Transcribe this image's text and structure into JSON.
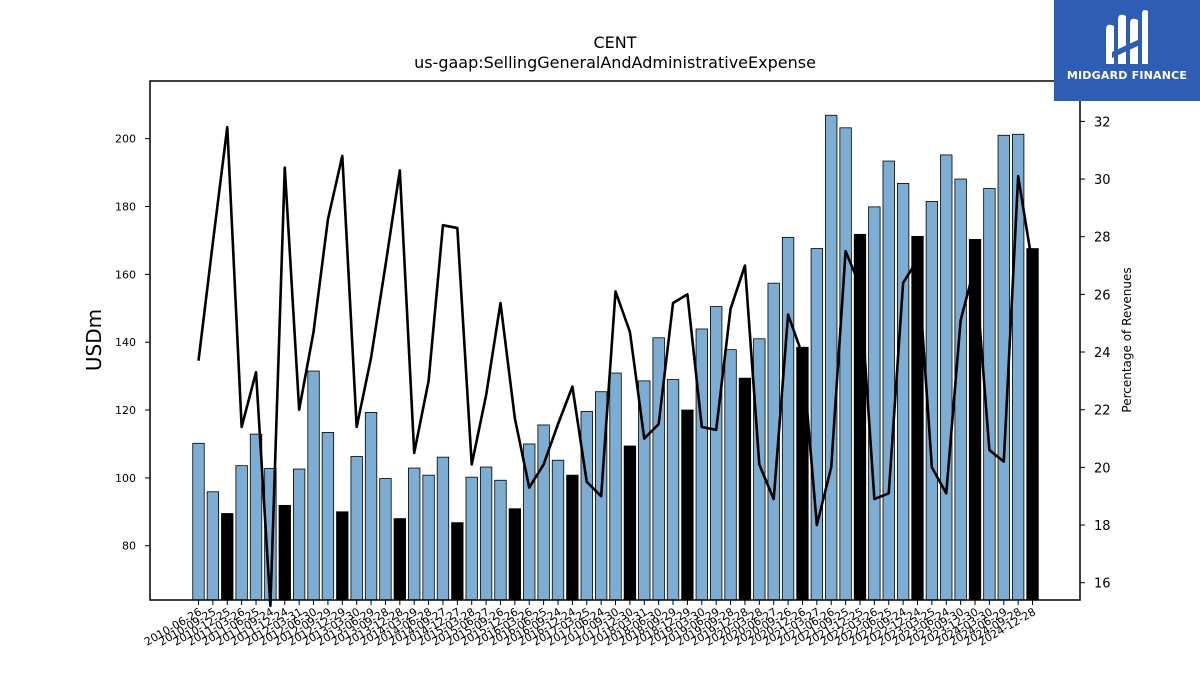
{
  "chart_data": {
    "type": "bar",
    "title": "CENT",
    "subtitle": "us-gaap:SellingGeneralAndAdministrativeExpense",
    "ylabel": "USDm",
    "y2label": "Percentage of Revenues",
    "ylim": [
      64,
      217
    ],
    "y2lim": [
      15.4,
      33.4
    ],
    "yticks": [
      80,
      100,
      120,
      140,
      160,
      180,
      200
    ],
    "y2ticks": [
      16,
      18,
      20,
      22,
      24,
      26,
      28,
      30,
      32
    ],
    "bar_colors": {
      "quarter": "#7eadd3",
      "annual": "#000000"
    },
    "line_color": "#000000",
    "series": [
      {
        "name": "",
        "kind": "bar",
        "categories": [
          "2010-06-26",
          "2010-09-25",
          "2010-12-25",
          "2011-03-26",
          "2011-06-25",
          "2011-09-24",
          "2011-12-24",
          "2012-03-31",
          "2012-06-30",
          "2012-09-29",
          "2012-12-29",
          "2013-03-30",
          "2013-06-29",
          "2013-09-28",
          "2013-12-28",
          "2014-03-29",
          "2014-06-28",
          "2014-09-27",
          "2014-12-27",
          "2015-03-28",
          "2015-06-27",
          "2015-09-26",
          "2015-12-26",
          "2016-03-26",
          "2016-06-25",
          "2016-09-24",
          "2016-12-24",
          "2017-03-25",
          "2017-06-24",
          "2017-09-30",
          "2017-12-30",
          "2018-03-31",
          "2018-06-30",
          "2018-09-29",
          "2018-12-29",
          "2019-03-30",
          "2019-06-29",
          "2019-09-28",
          "2019-12-28",
          "2020-03-28",
          "2020-06-27",
          "2020-09-26",
          "2020-12-26",
          "2021-03-27",
          "2021-06-26",
          "2021-09-25",
          "2021-12-25",
          "2022-03-26",
          "2022-06-25",
          "2022-09-24",
          "2022-12-24",
          "2023-03-25",
          "2023-06-24",
          "2023-09-30",
          "2023-12-30",
          "2024-03-30",
          "2024-06-29",
          "2024-09-28",
          "2024-12-28"
        ],
        "values": [
          110.2,
          95.9,
          89.5,
          103.6,
          112.9,
          102.8,
          91.9,
          102.6,
          131.5,
          113.4,
          90.0,
          106.3,
          119.3,
          99.8,
          88.0,
          102.9,
          100.8,
          106.1,
          86.8,
          100.2,
          103.2,
          99.3,
          90.9,
          110.0,
          115.6,
          105.2,
          100.8,
          119.6,
          125.4,
          130.9,
          109.4,
          128.6,
          141.3,
          129.0,
          120.0,
          143.9,
          150.5,
          137.8,
          129.4,
          141.0,
          157.4,
          170.9,
          138.5,
          167.6,
          206.9,
          203.2,
          171.8,
          179.9,
          193.4,
          186.8,
          171.2,
          181.5,
          195.2,
          188.1,
          170.3,
          185.3,
          201.0,
          201.3,
          167.6
        ],
        "is_annual": [
          false,
          false,
          true,
          false,
          false,
          false,
          true,
          false,
          false,
          false,
          true,
          false,
          false,
          false,
          true,
          false,
          false,
          false,
          true,
          false,
          false,
          false,
          true,
          false,
          false,
          false,
          true,
          false,
          false,
          false,
          true,
          false,
          false,
          false,
          true,
          false,
          false,
          false,
          true,
          false,
          false,
          false,
          true,
          false,
          false,
          false,
          true,
          false,
          false,
          false,
          true,
          false,
          false,
          false,
          true,
          false,
          false,
          false,
          true
        ]
      },
      {
        "name": "",
        "kind": "line",
        "axis": "right",
        "values": [
          23.7,
          27.8,
          31.8,
          21.4,
          23.3,
          15.2,
          30.4,
          22.0,
          24.7,
          28.6,
          30.8,
          21.4,
          23.8,
          27.0,
          30.3,
          20.5,
          23.0,
          28.4,
          28.3,
          20.1,
          22.5,
          25.7,
          21.7,
          19.3,
          20.1,
          21.5,
          22.8,
          19.5,
          19.0,
          26.1,
          24.7,
          21.0,
          21.5,
          25.7,
          26.0,
          21.4,
          21.3,
          25.5,
          27.0,
          20.1,
          18.9,
          25.3,
          23.9,
          18.0,
          20.0,
          27.5,
          26.3,
          18.9,
          19.1,
          26.4,
          27.2,
          20.0,
          19.1,
          25.1,
          27.0,
          20.6,
          20.2,
          30.1,
          27.0
        ]
      }
    ],
    "xtick_labels": [
      "2010-06-26",
      "2010-09-25",
      "2010-12-25",
      "2011-03-26",
      "2011-06-25",
      "2011-09-24",
      "2011-12-24",
      "2012-03-31",
      "2012-06-30",
      "2012-09-29",
      "2012-12-29",
      "2013-03-30",
      "2013-06-29",
      "2013-09-28",
      "2013-12-28",
      "2014-03-29",
      "2014-06-28",
      "2014-09-27",
      "2014-12-27",
      "2015-03-28",
      "2015-06-27",
      "2015-09-26",
      "2015-12-26",
      "2016-03-26",
      "2016-06-25",
      "2016-09-24",
      "2016-12-24",
      "2017-03-25",
      "2017-06-24",
      "2017-09-30",
      "2017-12-30",
      "2018-03-31",
      "2018-06-30",
      "2018-09-29",
      "2018-12-29",
      "2019-03-30",
      "2019-06-29",
      "2019-09-28",
      "2019-12-28",
      "2020-03-28",
      "2020-06-27",
      "2020-09-26",
      "2020-12-26",
      "2021-03-27",
      "2021-06-26",
      "2021-09-25",
      "2021-12-25",
      "2022-03-26",
      "2022-06-25",
      "2022-09-24",
      "2022-12-24",
      "2023-03-25",
      "2023-06-24",
      "2023-09-30",
      "2023-12-30",
      "2024-03-30",
      "2024-06-29",
      "2024-09-28",
      "2024-12-28"
    ]
  },
  "logo": {
    "text": "MIDGARD FINANCE",
    "icon": "midgard-logo-icon",
    "background": "#2f5db3"
  }
}
